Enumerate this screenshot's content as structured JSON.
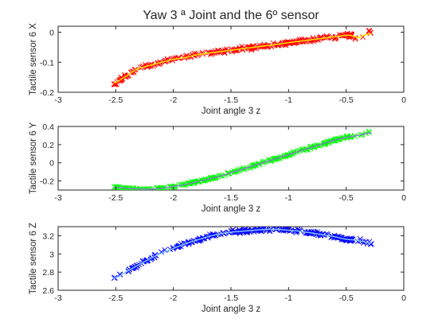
{
  "chart_data": [
    {
      "type": "scatter",
      "title": "Yaw 3 ª Joint and the 6º sensor",
      "xlabel": "Joint angle 3 z",
      "ylabel": "Tactile sensor 6 X",
      "xlim": [
        -3,
        0
      ],
      "ylim": [
        -0.2,
        0.02
      ],
      "xticks": [
        -3,
        -2.5,
        -2,
        -1.5,
        -1,
        -0.5,
        0
      ],
      "xtick_labels": [
        "-3",
        "-2.5",
        "-2",
        "-1.5",
        "-1",
        "-0.5",
        "0"
      ],
      "yticks": [
        -0.2,
        -0.1,
        0
      ],
      "ytick_labels": [
        "-0.2",
        "-0.1",
        "0"
      ],
      "grid": false,
      "marker": "x",
      "color": "#ff0000",
      "fit_color": "#ffe000",
      "x_range": [
        -2.52,
        -0.28
      ],
      "points": [
        [
          -2.5,
          -0.17
        ],
        [
          -2.45,
          -0.155
        ],
        [
          -2.4,
          -0.145
        ],
        [
          -2.35,
          -0.13
        ],
        [
          -2.3,
          -0.12
        ],
        [
          -2.2,
          -0.11
        ],
        [
          -2.1,
          -0.1
        ],
        [
          -2.0,
          -0.09
        ],
        [
          -1.9,
          -0.085
        ],
        [
          -1.8,
          -0.075
        ],
        [
          -1.7,
          -0.07
        ],
        [
          -1.6,
          -0.065
        ],
        [
          -1.5,
          -0.06
        ],
        [
          -1.4,
          -0.055
        ],
        [
          -1.3,
          -0.05
        ],
        [
          -1.2,
          -0.045
        ],
        [
          -1.1,
          -0.04
        ],
        [
          -1.0,
          -0.035
        ],
        [
          -0.9,
          -0.03
        ],
        [
          -0.8,
          -0.025
        ],
        [
          -0.7,
          -0.02
        ],
        [
          -0.6,
          -0.015
        ],
        [
          -0.5,
          -0.01
        ],
        [
          -0.45,
          -0.01
        ],
        [
          -0.4,
          -0.02
        ],
        [
          -0.35,
          -0.01
        ],
        [
          -0.3,
          -0.005
        ]
      ]
    },
    {
      "type": "scatter",
      "title": "",
      "xlabel": "Joint angle 3 z",
      "ylabel": "Tactile sensor 6 Y",
      "xlim": [
        -3,
        0
      ],
      "ylim": [
        -0.3,
        0.4
      ],
      "xticks": [
        -3,
        -2.5,
        -2,
        -1.5,
        -1,
        -0.5,
        0
      ],
      "xtick_labels": [
        "-3",
        "-2.5",
        "-2",
        "-1.5",
        "-1",
        "-0.5",
        "0"
      ],
      "yticks": [
        -0.2,
        0,
        0.2,
        0.4
      ],
      "ytick_labels": [
        "-0.2",
        "0",
        "0.2",
        "0.4"
      ],
      "grid": false,
      "marker": "x",
      "color": "#00ff00",
      "fit_color": "#7f7fc0",
      "x_range": [
        -2.52,
        -0.28
      ],
      "points": [
        [
          -2.5,
          -0.27
        ],
        [
          -2.4,
          -0.28
        ],
        [
          -2.3,
          -0.29
        ],
        [
          -2.2,
          -0.29
        ],
        [
          -2.1,
          -0.28
        ],
        [
          -2.0,
          -0.26
        ],
        [
          -1.9,
          -0.24
        ],
        [
          -1.8,
          -0.21
        ],
        [
          -1.7,
          -0.18
        ],
        [
          -1.6,
          -0.15
        ],
        [
          -1.5,
          -0.11
        ],
        [
          -1.4,
          -0.07
        ],
        [
          -1.3,
          -0.03
        ],
        [
          -1.2,
          0.01
        ],
        [
          -1.1,
          0.05
        ],
        [
          -1.0,
          0.09
        ],
        [
          -0.9,
          0.13
        ],
        [
          -0.8,
          0.17
        ],
        [
          -0.7,
          0.21
        ],
        [
          -0.6,
          0.25
        ],
        [
          -0.5,
          0.28
        ],
        [
          -0.4,
          0.3
        ],
        [
          -0.3,
          0.33
        ]
      ]
    },
    {
      "type": "scatter",
      "title": "",
      "xlabel": "Joint angle 3 z",
      "ylabel": "Tactile sensor 6 Z",
      "xlim": [
        -3,
        0
      ],
      "ylim": [
        2.6,
        3.3
      ],
      "xticks": [
        -3,
        -2.5,
        -2,
        -1.5,
        -1,
        -0.5,
        0
      ],
      "xtick_labels": [
        "-3",
        "-2.5",
        "-2",
        "-1.5",
        "-1",
        "-0.5",
        "0"
      ],
      "yticks": [
        2.6,
        2.8,
        3,
        3.2
      ],
      "ytick_labels": [
        "2.6",
        "2.8",
        "3",
        "3.2"
      ],
      "grid": false,
      "marker": "x",
      "color": "#0000ff",
      "fit_color": "#80c0ff",
      "x_range": [
        -2.52,
        -0.28
      ],
      "points": [
        [
          -2.5,
          2.73
        ],
        [
          -2.4,
          2.81
        ],
        [
          -2.3,
          2.88
        ],
        [
          -2.2,
          2.95
        ],
        [
          -2.1,
          3.01
        ],
        [
          -2.0,
          3.06
        ],
        [
          -1.9,
          3.11
        ],
        [
          -1.8,
          3.15
        ],
        [
          -1.7,
          3.19
        ],
        [
          -1.6,
          3.22
        ],
        [
          -1.5,
          3.24
        ],
        [
          -1.4,
          3.25
        ],
        [
          -1.3,
          3.26
        ],
        [
          -1.2,
          3.27
        ],
        [
          -1.1,
          3.27
        ],
        [
          -1.0,
          3.26
        ],
        [
          -0.9,
          3.25
        ],
        [
          -0.8,
          3.23
        ],
        [
          -0.7,
          3.21
        ],
        [
          -0.6,
          3.19
        ],
        [
          -0.5,
          3.16
        ],
        [
          -0.4,
          3.15
        ],
        [
          -0.3,
          3.12
        ]
      ]
    }
  ]
}
